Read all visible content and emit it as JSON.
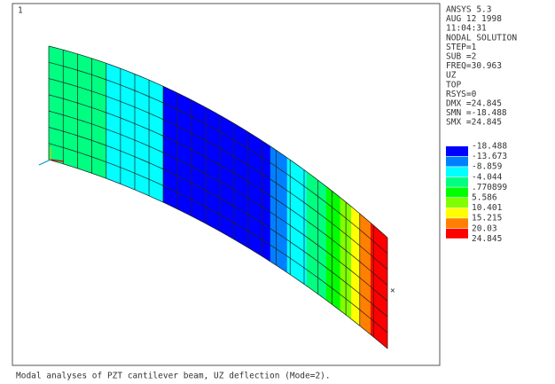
{
  "window_number": "1",
  "info": [
    "ANSYS 5.3",
    "AUG 12 1998",
    "11:04:31",
    "NODAL SOLUTION",
    "STEP=1",
    "SUB =2",
    "FREQ=30.963",
    "UZ",
    "TOP",
    "RSYS=0",
    "DMX =24.845",
    "SMN =-18.488",
    "SMX =24.845"
  ],
  "legend": {
    "colors": [
      "#0000ff",
      "#0080ff",
      "#00ffff",
      "#00ff80",
      "#00ff00",
      "#80ff00",
      "#ffff00",
      "#ff8000",
      "#ff0000"
    ],
    "labels": [
      "-18.488",
      "-13.673",
      "-8.859",
      "-4.044",
      ".770899",
      "5.586",
      "10.401",
      "15.215",
      "20.03",
      "24.845"
    ]
  },
  "caption": "Modal analyses of PZT cantilever beam, UZ deflection (Mode=2)."
}
